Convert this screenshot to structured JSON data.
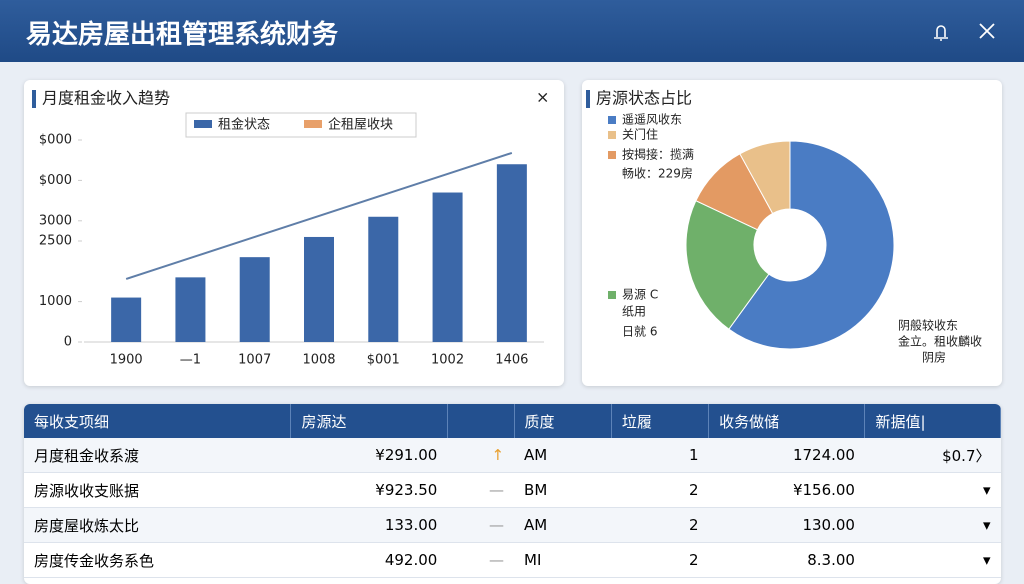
{
  "header": {
    "title": "易达房屋出租管理系统财务"
  },
  "chart_data": [
    {
      "type": "bar",
      "title": "月度租金收入趋势",
      "categories": [
        "1900",
        "—1",
        "1007",
        "1008",
        "$001",
        "1002",
        "1406"
      ],
      "series": [
        {
          "name": "租金状态",
          "color": "#3b67a8",
          "values": [
            1100,
            1600,
            2100,
            2600,
            3100,
            3700,
            4400
          ]
        },
        {
          "name": "企租屋收块",
          "color": "#e8a06a",
          "line_color": "#5f7ea8",
          "values": [
            1560,
            2080,
            2600,
            3120,
            3640,
            4160,
            4680
          ]
        }
      ],
      "ylim": [
        0,
        5000
      ],
      "yticks": [
        0,
        1000,
        2500,
        3000,
        {
          "value": 4000,
          "label": "$000"
        },
        {
          "value": 5000,
          "label": "$000"
        }
      ]
    },
    {
      "type": "pie",
      "title": "房源状态占比",
      "series": [
        {
          "name": "遥遥风收东",
          "color": "#4a7cc4",
          "value": 60
        },
        {
          "name": "易源 C",
          "color": "#6fb06a",
          "value": 22
        },
        {
          "name": "按揭接：揽满",
          "color": "#e39a63",
          "value": 10
        },
        {
          "name": "关门住",
          "color": "#e9c08a",
          "value": 8
        }
      ],
      "annotations": [
        "畅收：229房",
        "纸用",
        "日就 6",
        "阴般较收东",
        "金立。租收麟收",
        "阴房"
      ]
    }
  ],
  "table": {
    "columns": [
      "每收支项细",
      "房源达",
      "质度",
      "垃履",
      "收务做储",
      "新据值|"
    ],
    "rows": [
      [
        "月度租金收系渡",
        "¥291.00",
        "↑",
        "AM",
        "1",
        "1724.00",
        "$0.7〉"
      ],
      [
        "房源收收支账据",
        "¥923.50",
        "—",
        "BM",
        "2",
        "¥156.00",
        "▾"
      ],
      [
        "房度屋收炼太比",
        "133.00",
        "—",
        "AM",
        "2",
        "130.00",
        "▾"
      ],
      [
        "房度传金收务系色",
        "492.00",
        "—",
        "MI",
        "2",
        "8.3.00",
        "▾"
      ]
    ]
  }
}
